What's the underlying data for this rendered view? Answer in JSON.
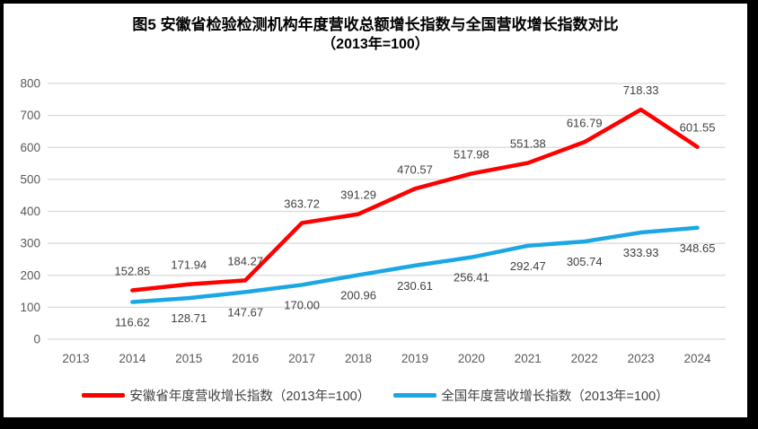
{
  "title": {
    "line1": "图5  安徽省检验检测机构年度营收总额增长指数与全国营收增长指数对比",
    "line2": "（2013年=100）"
  },
  "chart_data": {
    "type": "line",
    "categories": [
      "2013",
      "2014",
      "2015",
      "2016",
      "2017",
      "2018",
      "2019",
      "2020",
      "2021",
      "2022",
      "2023",
      "2024"
    ],
    "series": [
      {
        "name": "安徽省年度营收增长指数（2013年=100）",
        "color": "#FF0000",
        "label_position": "above",
        "values": [
          null,
          152.85,
          171.94,
          184.27,
          363.72,
          391.29,
          470.57,
          517.98,
          551.38,
          616.79,
          718.33,
          601.55
        ]
      },
      {
        "name": "全国年度营收增长指数（2013年=100）",
        "color": "#1BA7E4",
        "label_position": "below",
        "values": [
          null,
          116.62,
          128.71,
          147.67,
          170.0,
          200.96,
          230.61,
          256.41,
          292.47,
          305.74,
          333.93,
          348.65
        ]
      }
    ],
    "ylabel": "",
    "xlabel": "",
    "ylim": [
      0,
      800
    ],
    "ytick_step": 100,
    "grid": true,
    "legend_position": "bottom",
    "colors": {
      "gridline": "#D9D9D9",
      "axis_text": "#595959",
      "data_label_text": "#404040"
    }
  }
}
